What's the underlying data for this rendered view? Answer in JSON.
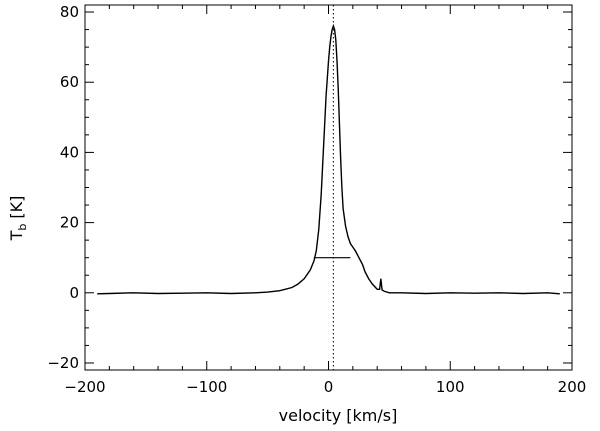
{
  "chart_data": {
    "type": "line",
    "title": "",
    "xlabel": "velocity [km/s]",
    "ylabel": "T_b [K]",
    "ylabel_main": "T",
    "ylabel_sub": "b",
    "ylabel_unit": "[K]",
    "xlim": [
      -200,
      200
    ],
    "ylim": [
      -22,
      82
    ],
    "xticks": [
      -200,
      -100,
      0,
      100,
      200
    ],
    "yticks": [
      -20,
      0,
      20,
      40,
      60,
      80
    ],
    "xtick_labels": [
      "−200",
      "−100",
      "0",
      "100",
      "200"
    ],
    "ytick_labels": [
      "−20",
      "0",
      "20",
      "40",
      "60",
      "80"
    ],
    "grid": false,
    "series": [
      {
        "x": [
          -190,
          -180,
          -160,
          -140,
          -120,
          -100,
          -80,
          -60,
          -50,
          -40,
          -30,
          -25,
          -20,
          -15,
          -12,
          -10,
          -8,
          -6,
          -4,
          -2,
          0,
          1,
          2,
          3,
          4,
          5,
          6,
          7,
          8,
          9,
          10,
          11,
          12,
          14,
          16,
          18,
          20,
          22,
          25,
          28,
          30,
          33,
          36,
          40,
          42,
          43,
          44,
          46,
          50,
          60,
          80,
          100,
          120,
          140,
          160,
          180,
          190
        ],
        "y": [
          -0.3,
          -0.2,
          0,
          -0.2,
          -0.1,
          0,
          -0.2,
          0,
          0.2,
          0.6,
          1.5,
          2.5,
          4,
          6.5,
          9,
          12,
          18,
          28,
          42,
          56,
          66,
          70,
          73,
          75,
          76,
          75,
          72,
          66,
          58,
          48,
          38,
          30,
          24,
          19,
          16,
          14,
          13,
          12,
          10,
          8,
          6,
          4,
          2.5,
          1,
          1,
          4,
          0.8,
          0.4,
          0,
          0,
          -0.2,
          0,
          -0.1,
          0,
          -0.2,
          0,
          -0.3
        ]
      }
    ],
    "reference_line_x": 4,
    "width_bar": {
      "x": [
        -12,
        18
      ],
      "y": 10
    }
  }
}
